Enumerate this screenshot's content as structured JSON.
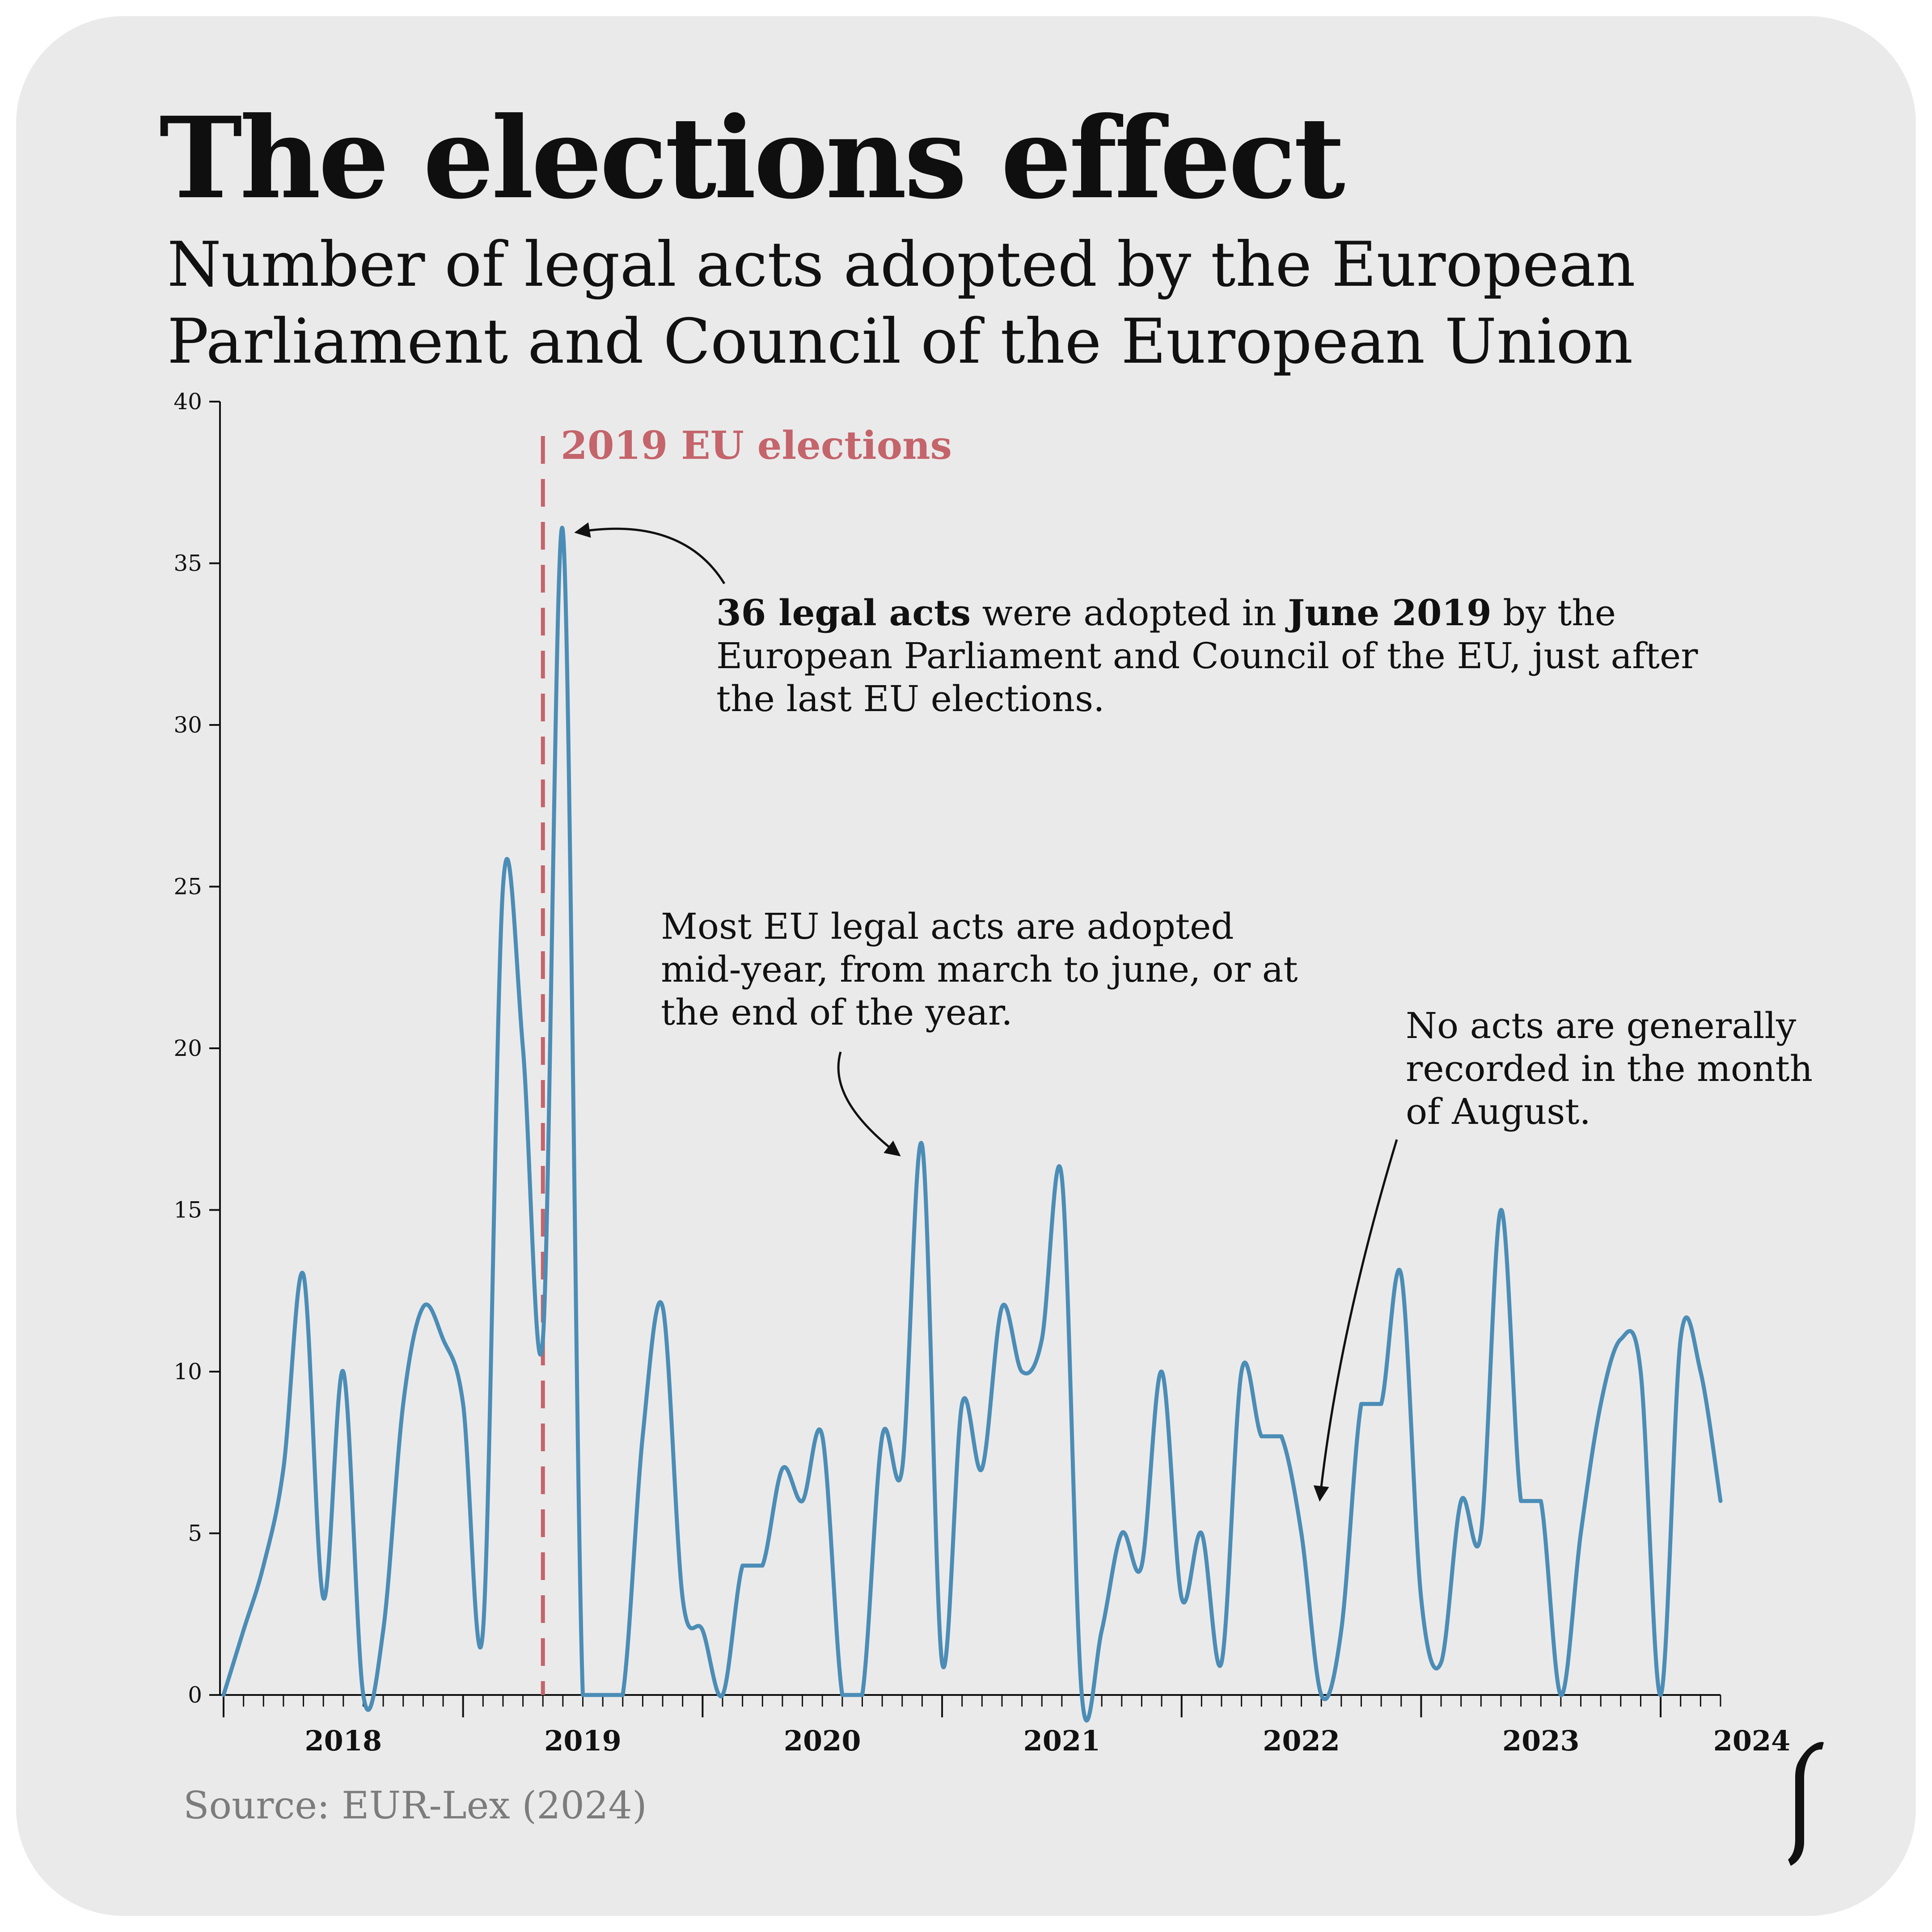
{
  "header": {
    "title": "The elections effect",
    "subtitle": "Number of legal acts adopted by the European Parliament and Council of the European Union"
  },
  "annotations": {
    "election_marker": "2019 EU elections",
    "peak_bold_1": "36 legal acts",
    "peak_text_1": " were adopted in ",
    "peak_bold_2": "June 2019",
    "peak_text_2": " by the European Parliament and Council of the EU, just after the last EU elections.",
    "midyear": "Most EU legal acts are adopted mid-year, from march to june, or at the end of the year.",
    "august": "No acts are generally recorded in the month of August."
  },
  "source": "Source: EUR-Lex (2024)",
  "colors": {
    "line": "#4b8db6",
    "election_marker": "#c4646b",
    "background": "#ebeaea",
    "source_text": "#7c7c7c"
  },
  "logo": {
    "icon": "publisher-logo-icon"
  },
  "chart_data": {
    "type": "line",
    "title": "The elections effect",
    "subtitle": "Number of legal acts adopted by the European Parliament and Council of the European Union",
    "x_start": "2018-01",
    "x_frequency": "monthly",
    "x_year_ticks": [
      "2018",
      "2019",
      "2020",
      "2021",
      "2022",
      "2023",
      "2024"
    ],
    "ylim": [
      0,
      40
    ],
    "y_ticks": [
      0,
      5,
      10,
      15,
      20,
      25,
      30,
      35,
      40
    ],
    "grid": false,
    "legend": "none",
    "series": [
      {
        "values": [
          0,
          2,
          4,
          7,
          13,
          3,
          10,
          0,
          2,
          9,
          12,
          11,
          9,
          2,
          25,
          20,
          11,
          36,
          0,
          0,
          0,
          8,
          12,
          3,
          2,
          0,
          4,
          4,
          7,
          6,
          8,
          0,
          0,
          8,
          7,
          17,
          1,
          9,
          7,
          12,
          10,
          11,
          16,
          0,
          2,
          5,
          4,
          10,
          3,
          5,
          1,
          10,
          8,
          8,
          5,
          0,
          2,
          9,
          9,
          13,
          3,
          1,
          6,
          5,
          15,
          6,
          6,
          0,
          5,
          9,
          11,
          10,
          0,
          11,
          10,
          6
        ]
      }
    ],
    "event_marker": {
      "label": "2019 EU elections",
      "x": "2019-05"
    }
  }
}
